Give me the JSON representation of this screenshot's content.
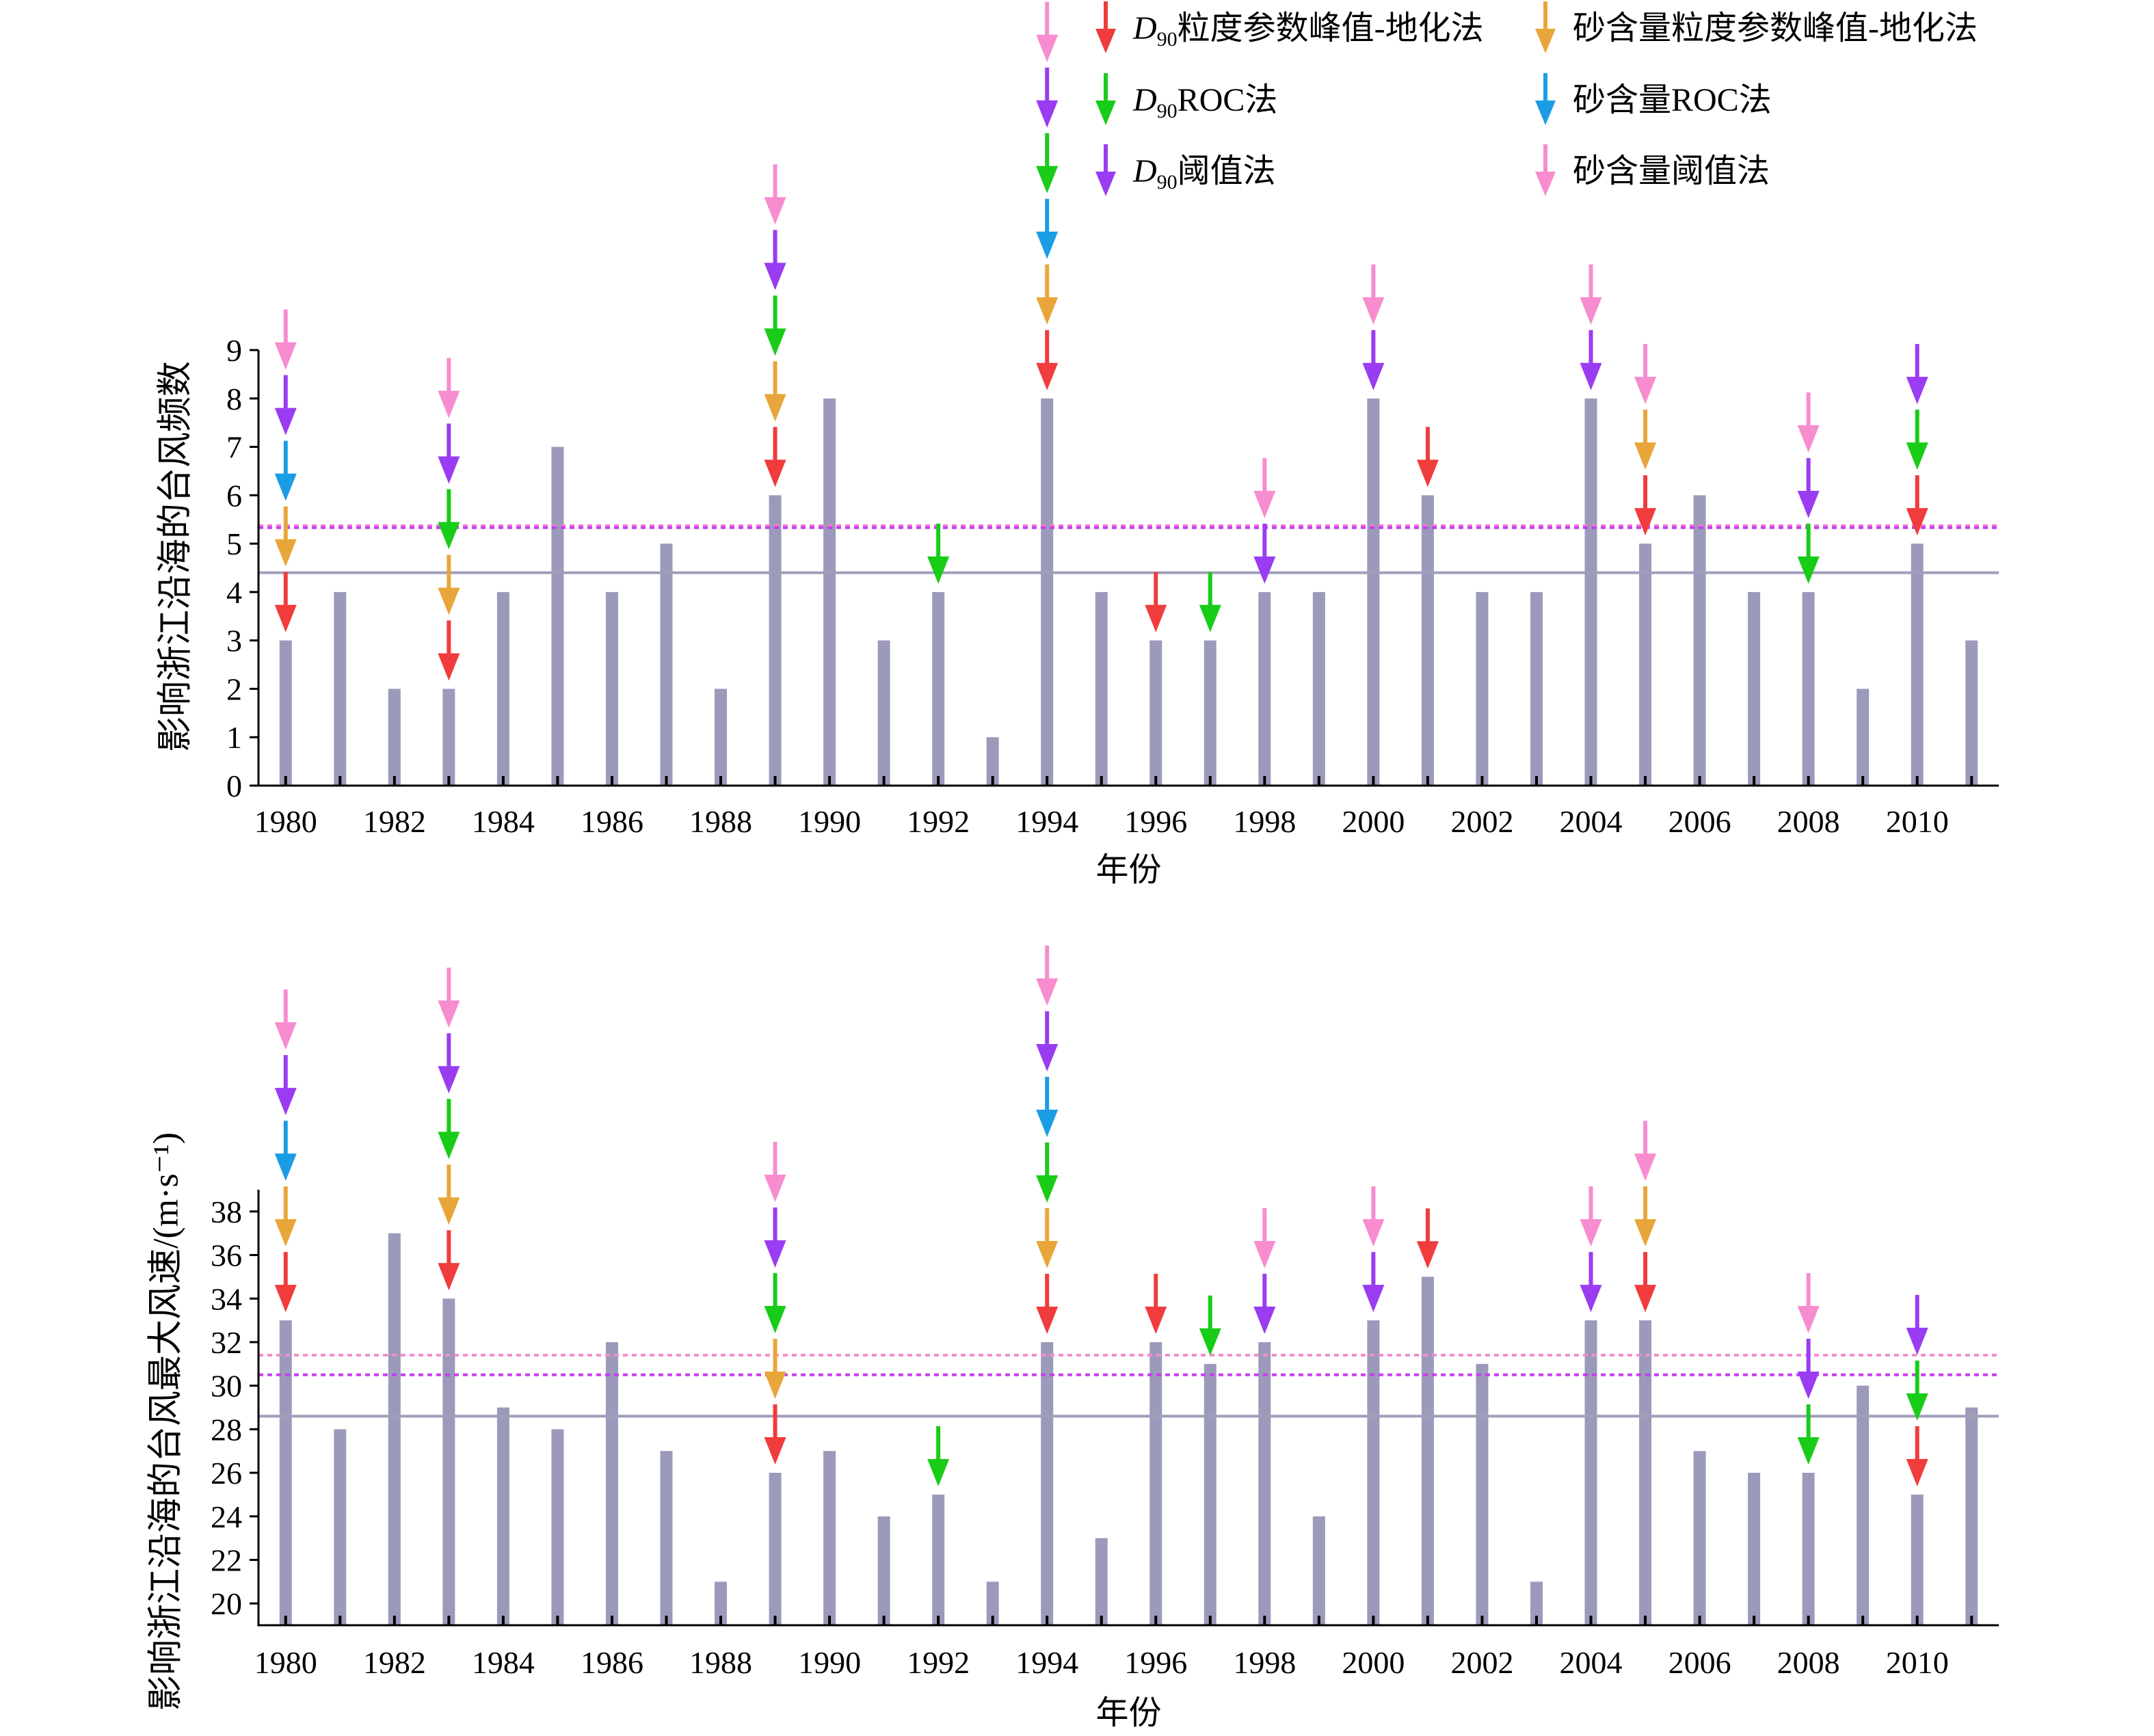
{
  "chart_data": [
    {
      "type": "bar",
      "x": [
        1980,
        1981,
        1982,
        1983,
        1984,
        1985,
        1986,
        1987,
        1988,
        1989,
        1990,
        1991,
        1992,
        1993,
        1994,
        1995,
        1996,
        1997,
        1998,
        1999,
        2000,
        2001,
        2002,
        2003,
        2004,
        2005,
        2006,
        2007,
        2008,
        2009,
        2010,
        2011
      ],
      "values": [
        3,
        4,
        2,
        2,
        4,
        7,
        4,
        5,
        2,
        6,
        8,
        3,
        4,
        1,
        8,
        4,
        3,
        3,
        4,
        4,
        8,
        6,
        4,
        4,
        8,
        5,
        6,
        4,
        4,
        2,
        5,
        3
      ],
      "bar_color": "#9c9aba",
      "xlabel": "年份",
      "ylabel": "影响浙江沿海的台风频数",
      "xlim": [
        1979.5,
        2011.5
      ],
      "ylim": [
        0,
        9
      ],
      "xticks": [
        1980,
        1982,
        1984,
        1986,
        1988,
        1990,
        1992,
        1994,
        1996,
        1998,
        2000,
        2002,
        2004,
        2006,
        2008,
        2010
      ],
      "yticks": [
        0,
        1,
        2,
        3,
        4,
        5,
        6,
        7,
        8,
        9
      ],
      "grid": false,
      "reference_lines": [
        {
          "y": 4.4,
          "dashed": false,
          "color": "#a09ebb"
        },
        {
          "y": 5.37,
          "dashed": true,
          "color": "#f47ccb"
        },
        {
          "y": 5.33,
          "dashed": true,
          "color": "#c43ff0"
        }
      ],
      "legend": {
        "placement": "top-right",
        "entries": [
          {
            "italic": "D",
            "sub": "90",
            "label": "粒度参数峰值-地化法",
            "color": "#f03c3c"
          },
          {
            "label": "砂含量粒度参数峰值-地化法",
            "color": "#e8a63a"
          },
          {
            "italic": "D",
            "sub": "90",
            "label": "ROC法",
            "color": "#18cc18"
          },
          {
            "label": "砂含量ROC法",
            "color": "#1b9de6"
          },
          {
            "italic": "D",
            "sub": "90",
            "label": "阈值法",
            "color": "#9a3cf2"
          },
          {
            "label": "砂含量阈值法",
            "color": "#f78ccf"
          }
        ]
      },
      "arrow_markers": [
        {
          "x": [
            1980,
            1983,
            1989,
            1994,
            1996,
            2001,
            2005,
            2010
          ]
        },
        {
          "x": [
            1980,
            1983,
            1989,
            1994,
            2005
          ]
        },
        {
          "x": [
            1983,
            1989,
            1992,
            1994,
            1997,
            2008,
            2010
          ]
        },
        {
          "x": [
            1980,
            1994
          ]
        },
        {
          "x": [
            1980,
            1983,
            1989,
            1994,
            1998,
            2000,
            2004,
            2008,
            2010
          ]
        },
        {
          "x": [
            1980,
            1983,
            1989,
            1994,
            1998,
            2000,
            2004,
            2005,
            2008
          ]
        }
      ]
    },
    {
      "type": "bar",
      "x": [
        1980,
        1981,
        1982,
        1983,
        1984,
        1985,
        1986,
        1987,
        1988,
        1989,
        1990,
        1991,
        1992,
        1993,
        1994,
        1995,
        1996,
        1997,
        1998,
        1999,
        2000,
        2001,
        2002,
        2003,
        2004,
        2005,
        2006,
        2007,
        2008,
        2009,
        2010,
        2011
      ],
      "values": [
        33,
        28,
        37,
        34,
        29,
        28,
        32,
        27,
        21,
        26,
        27,
        24,
        25,
        21,
        32,
        23,
        32,
        31,
        32,
        24,
        33,
        35,
        31,
        21,
        33,
        33,
        27,
        26,
        26,
        30,
        25,
        29
      ],
      "bar_color": "#9c9aba",
      "xlabel": "年份",
      "ylabel": "影响浙江沿海的台风最大风速/(m·s⁻¹)",
      "xlim": [
        1979.5,
        2011.5
      ],
      "ylim": [
        19,
        39
      ],
      "xticks": [
        1980,
        1982,
        1984,
        1986,
        1988,
        1990,
        1992,
        1994,
        1996,
        1998,
        2000,
        2002,
        2004,
        2006,
        2008,
        2010
      ],
      "yticks": [
        20,
        22,
        24,
        26,
        28,
        30,
        32,
        34,
        36,
        38
      ],
      "grid": false,
      "reference_lines": [
        {
          "y": 28.6,
          "dashed": false,
          "color": "#a09ebb"
        },
        {
          "y": 31.4,
          "dashed": true,
          "color": "#f48ccd"
        },
        {
          "y": 30.5,
          "dashed": true,
          "color": "#c83cf0"
        }
      ],
      "arrow_markers": [
        {
          "x": [
            1980,
            1983,
            1989,
            1994,
            1996,
            2001,
            2005,
            2010
          ]
        },
        {
          "x": [
            1980,
            1983,
            1989,
            1994,
            2005
          ]
        },
        {
          "x": [
            1983,
            1989,
            1992,
            1994,
            1997,
            2008,
            2010
          ]
        },
        {
          "x": [
            1980,
            1994
          ]
        },
        {
          "x": [
            1980,
            1983,
            1989,
            1994,
            1998,
            2000,
            2004,
            2008,
            2010
          ]
        },
        {
          "x": [
            1980,
            1983,
            1989,
            1994,
            1998,
            2000,
            2004,
            2005,
            2008
          ]
        }
      ]
    }
  ]
}
